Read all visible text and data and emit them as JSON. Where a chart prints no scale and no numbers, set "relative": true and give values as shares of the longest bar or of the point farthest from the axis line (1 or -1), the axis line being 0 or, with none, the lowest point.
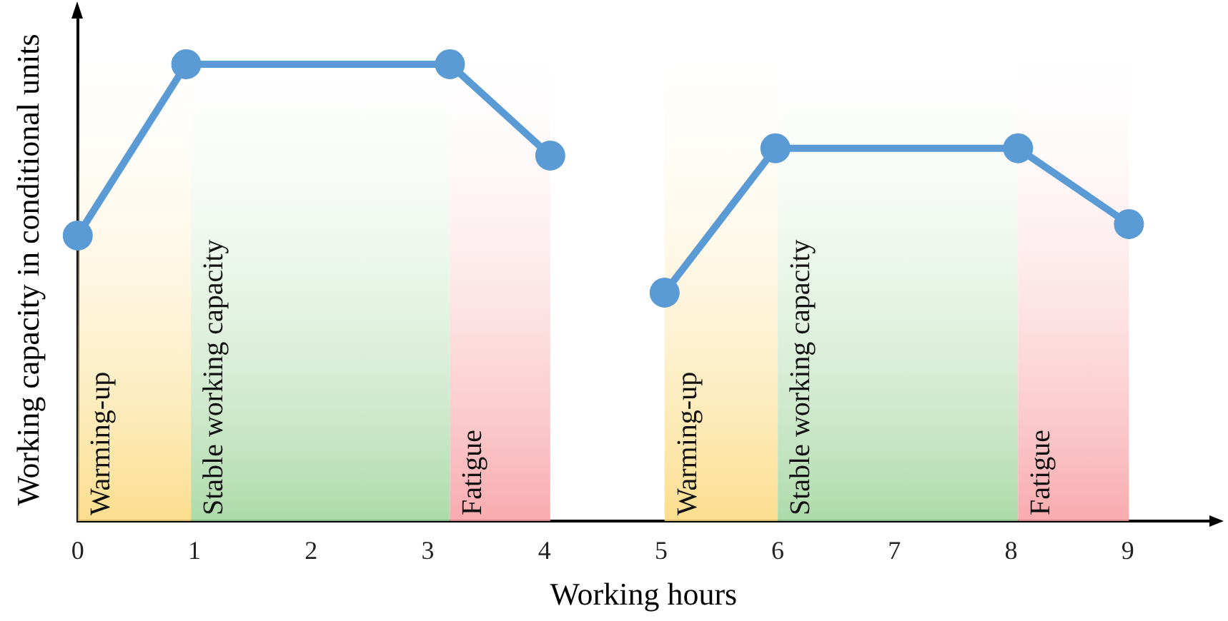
{
  "chart_data": {
    "type": "line",
    "relative": true,
    "xlabel": "Working hours",
    "ylabel": "Working capacity in conditional units",
    "xlim": [
      0,
      9.7
    ],
    "xticks": [
      0,
      1,
      2,
      3,
      4,
      5,
      6,
      7,
      8,
      9
    ],
    "grid": false,
    "legend": false,
    "marker": "circle",
    "line_style": "solid",
    "tick_labels": "x",
    "series": [
      {
        "color": "#5b9bd5",
        "x": [
          0,
          0.93,
          3.19,
          4.05
        ],
        "values": [
          0.625,
          1,
          1,
          0.8
        ]
      },
      {
        "color": "#5b9bd5",
        "x": [
          5.03,
          5.98,
          8.06,
          9.01
        ],
        "values": [
          0.5,
          0.816,
          0.816,
          0.65
        ]
      }
    ],
    "bands": [
      {
        "axis": "x",
        "from": 0,
        "to": 0.97,
        "label": "Warming-up",
        "color": "#fbd87a"
      },
      {
        "axis": "x",
        "from": 0.97,
        "to": 3.19,
        "label": "Stable working capacity",
        "color": "#9fd49a"
      },
      {
        "axis": "x",
        "from": 3.19,
        "to": 4.05,
        "label": "Fatigue",
        "color": "#f79ca0"
      },
      {
        "axis": "x",
        "from": 5.03,
        "to": 6,
        "label": "Warming-up",
        "color": "#fbd87a"
      },
      {
        "axis": "x",
        "from": 6,
        "to": 8.06,
        "label": "Stable working capacity",
        "color": "#9fd49a"
      },
      {
        "axis": "x",
        "from": 8.06,
        "to": 9.01,
        "label": "Fatigue",
        "color": "#f79ca0"
      }
    ]
  }
}
